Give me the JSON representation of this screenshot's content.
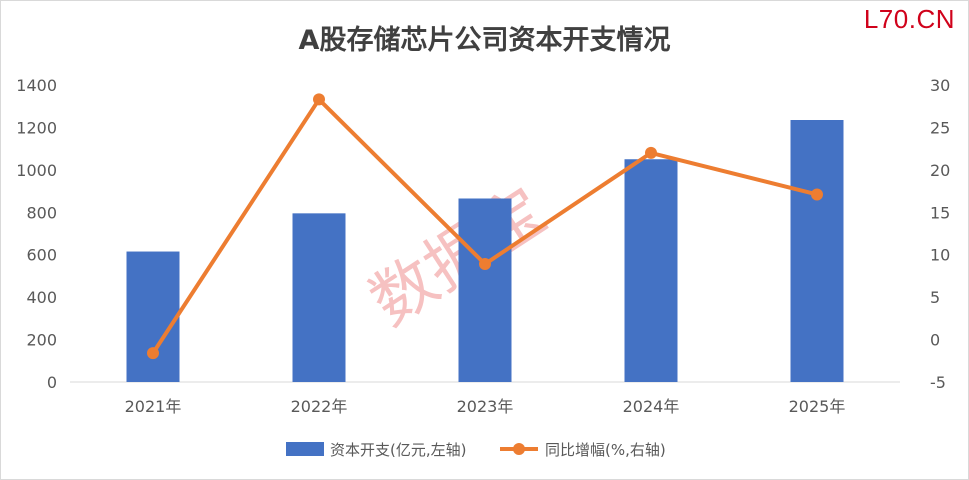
{
  "header": {
    "title": "A股存储芯片公司资本开支情况",
    "logo": "L70.CN"
  },
  "watermark": "数据宝",
  "chart_data": {
    "type": "bar",
    "categories": [
      "2021年",
      "2022年",
      "2023年",
      "2024年",
      "2025年"
    ],
    "series": [
      {
        "name": "资本开支(亿元,左轴)",
        "type": "bar",
        "axis": "left",
        "color": "#4472c4",
        "values": [
          615,
          795,
          865,
          1050,
          1235
        ]
      },
      {
        "name": "同比增幅(%,右轴)",
        "type": "line",
        "axis": "right",
        "color": "#ed7d31",
        "values": [
          -1.6,
          28.3,
          8.9,
          22.0,
          17.1
        ]
      }
    ],
    "y_left": {
      "min": 0,
      "max": 1400,
      "ticks": [
        "0",
        "200",
        "400",
        "600",
        "800",
        "1000",
        "1200",
        "1400"
      ]
    },
    "y_right": {
      "min": -5,
      "max": 30,
      "ticks": [
        "-5",
        "0",
        "5",
        "10",
        "15",
        "20",
        "25",
        "30"
      ]
    },
    "grid": false,
    "legend_position": "bottom"
  }
}
